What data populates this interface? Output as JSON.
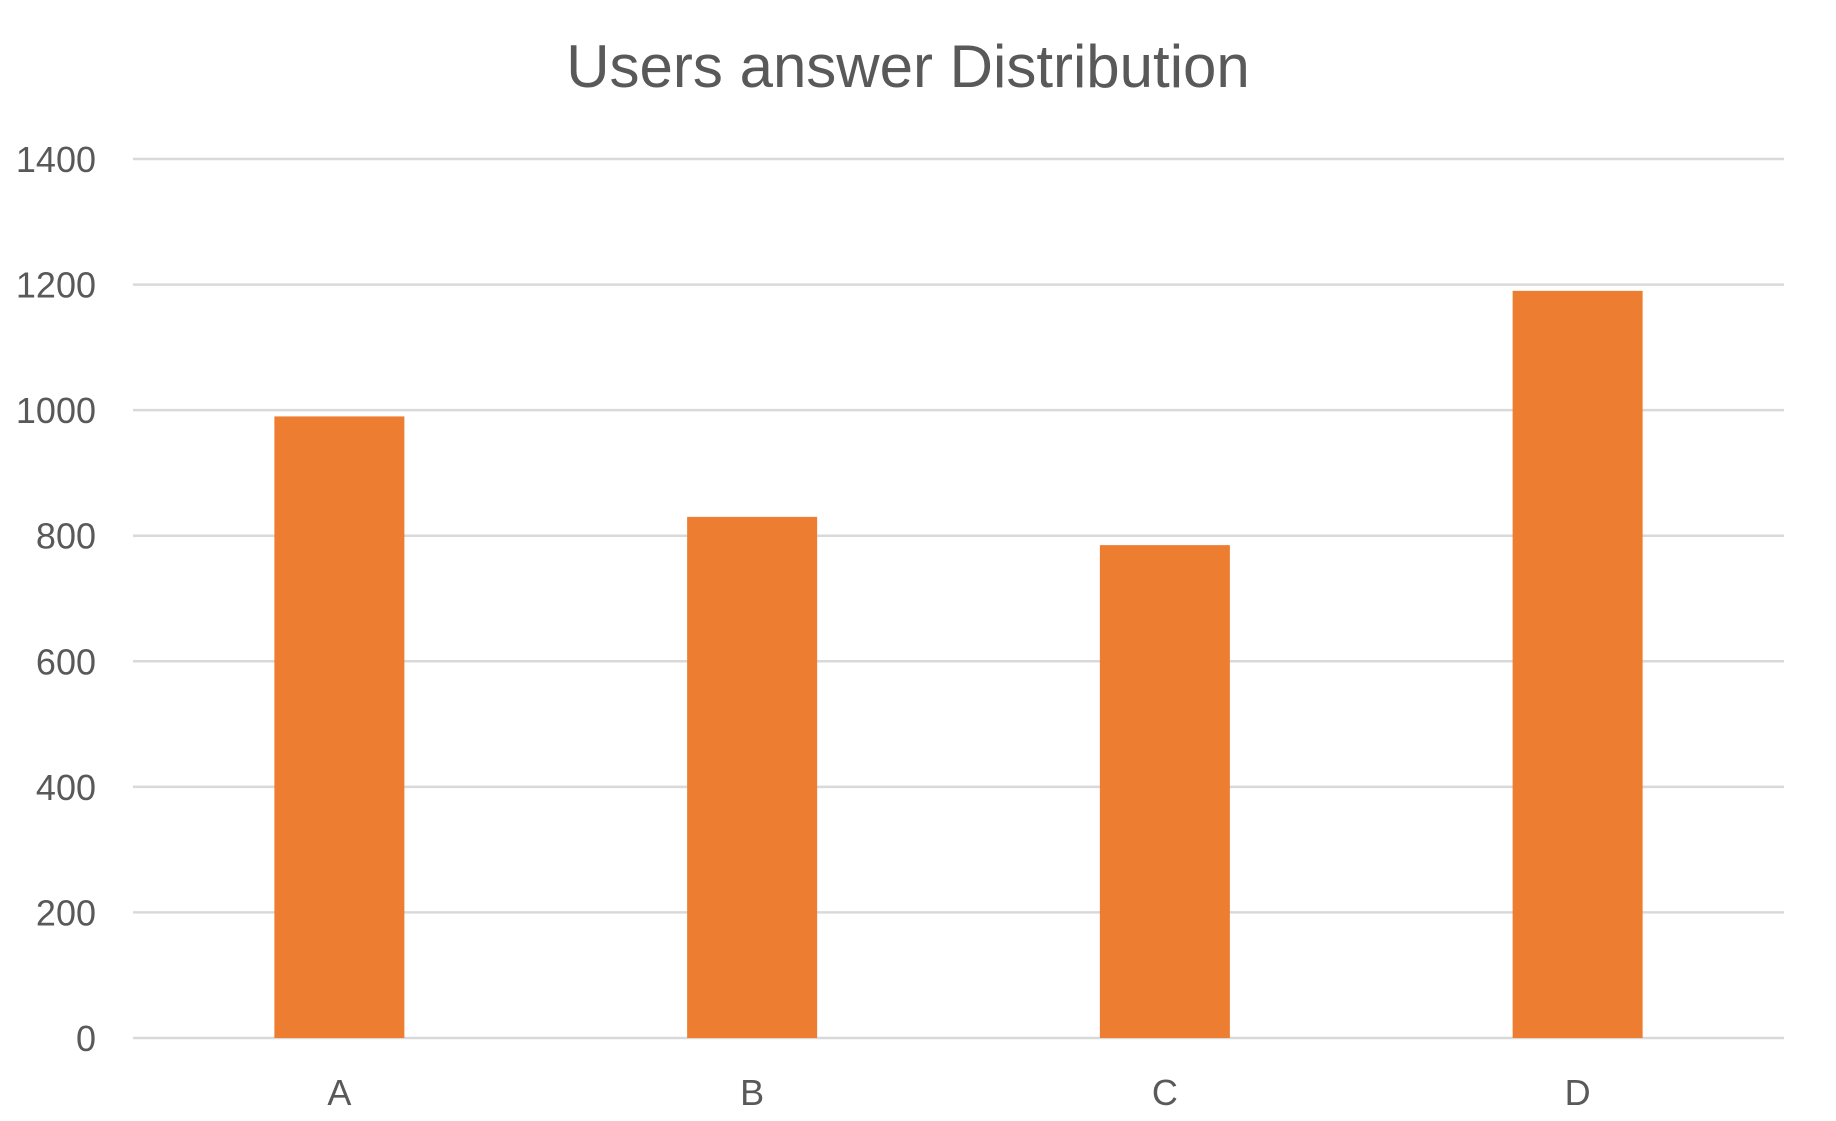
{
  "chart_data": {
    "type": "bar",
    "title": "Users answer Distribution",
    "xlabel": "",
    "ylabel": "",
    "categories": [
      "A",
      "B",
      "C",
      "D"
    ],
    "values": [
      990,
      830,
      785,
      1190
    ],
    "ylim": [
      0,
      1400
    ],
    "yticks": [
      0,
      200,
      400,
      600,
      800,
      1000,
      1200,
      1400
    ],
    "grid": true,
    "legend": "none",
    "colors": {
      "bar": "#ED7D31",
      "grid": "#D9D9D9",
      "text": "#595959"
    }
  }
}
